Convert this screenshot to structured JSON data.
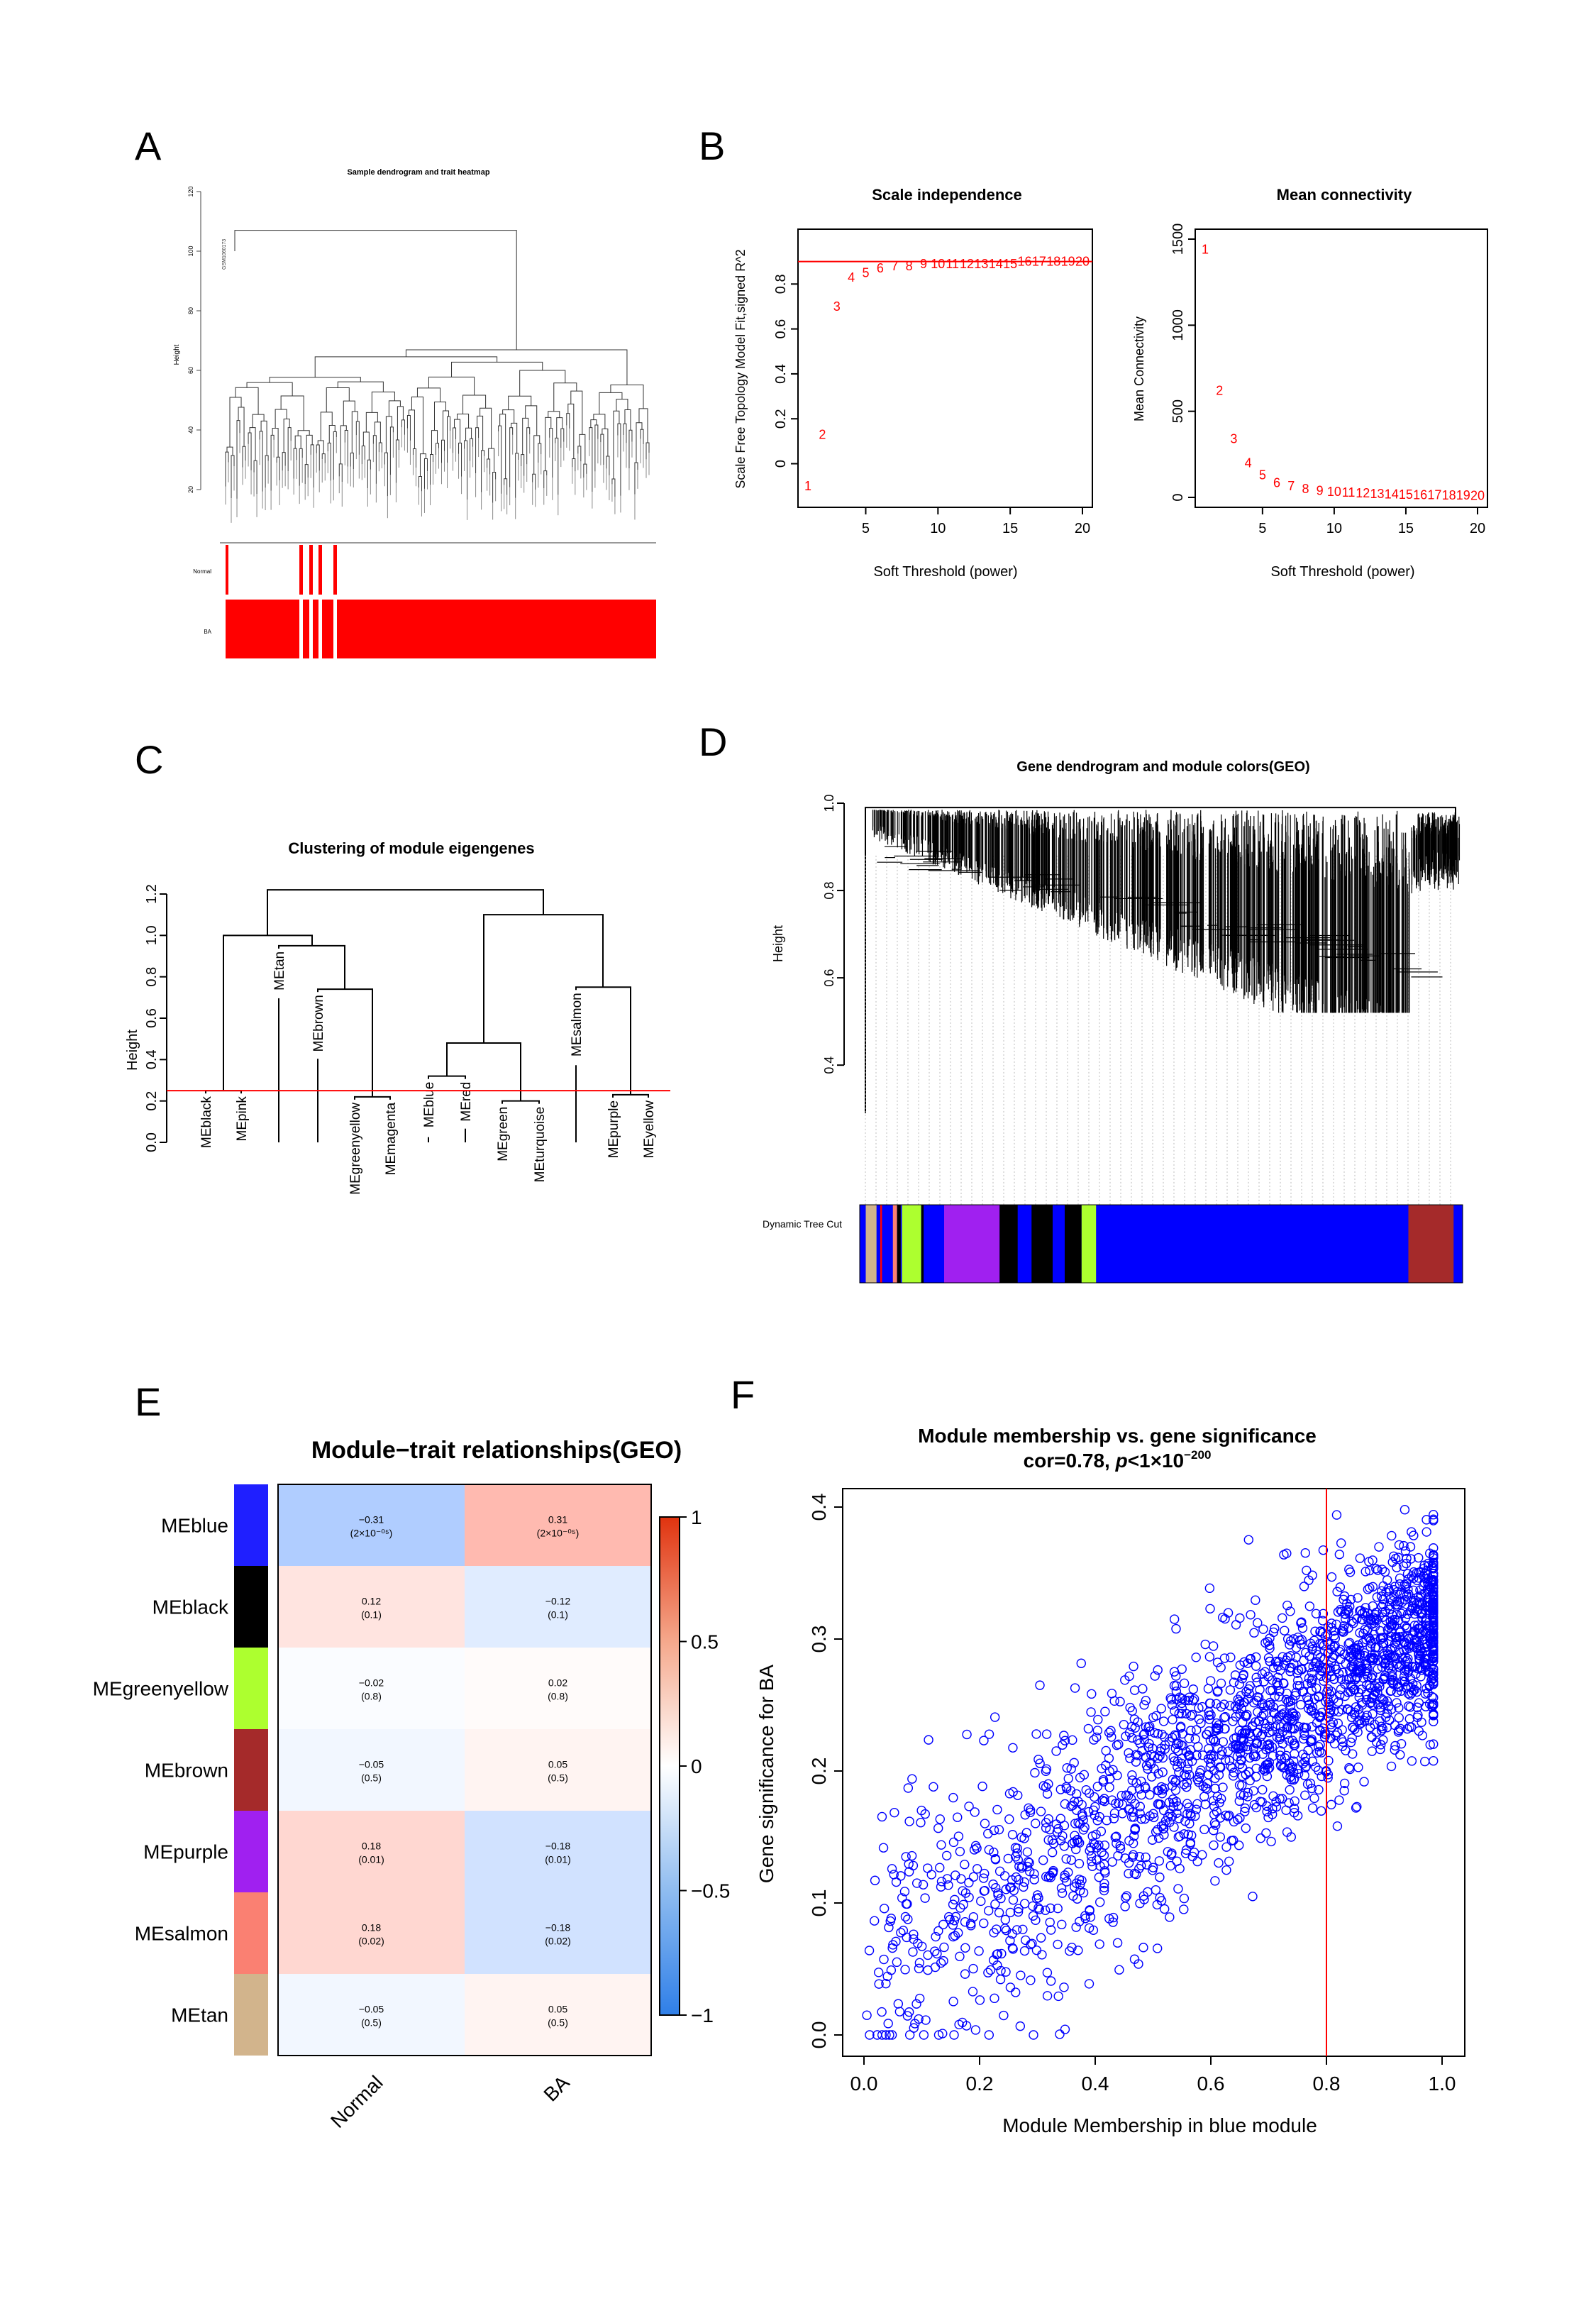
{
  "panels": {
    "a": "A",
    "b": "B",
    "c": "C",
    "d": "D",
    "e": "E",
    "f": "F"
  },
  "chart_data": [
    {
      "id": "A",
      "type": "dendrogram",
      "title": "Sample dendrogram and trait heatmap",
      "ylabel": "Height",
      "yticks": [
        20,
        40,
        60,
        80,
        100,
        120
      ],
      "outlier_sample": "GSM1060173",
      "trait_rows": [
        "Normal",
        "BA"
      ],
      "trait_colors": {
        "high": "#ff0000",
        "low": "#ffffff"
      }
    },
    {
      "id": "B1",
      "type": "scatter",
      "title": "Scale independence",
      "xlabel": "Soft Threshold (power)",
      "ylabel": "Scale Free Topology Model Fit,signed R^2",
      "xlim": [
        1,
        20
      ],
      "ylim": [
        -0.15,
        1.0
      ],
      "xticks": [
        5,
        10,
        15,
        20
      ],
      "yticks": [
        0.0,
        0.2,
        0.4,
        0.6,
        0.8
      ],
      "hline": 0.9,
      "x": [
        1,
        2,
        3,
        4,
        5,
        6,
        7,
        8,
        9,
        10,
        11,
        12,
        13,
        14,
        15,
        16,
        17,
        18,
        19,
        20
      ],
      "y": [
        -0.1,
        0.13,
        0.7,
        0.83,
        0.85,
        0.87,
        0.88,
        0.88,
        0.89,
        0.89,
        0.89,
        0.89,
        0.89,
        0.89,
        0.89,
        0.9,
        0.9,
        0.9,
        0.9,
        0.9
      ],
      "point_color": "#ff0000"
    },
    {
      "id": "B2",
      "type": "scatter",
      "title": "Mean connectivity",
      "xlabel": "Soft Threshold (power)",
      "ylabel": "Mean Connectivity",
      "xlim": [
        1,
        20
      ],
      "ylim": [
        0,
        1500
      ],
      "xticks": [
        5,
        10,
        15,
        20
      ],
      "yticks": [
        0,
        500,
        1000,
        1500
      ],
      "x": [
        1,
        2,
        3,
        4,
        5,
        6,
        7,
        8,
        9,
        10,
        11,
        12,
        13,
        14,
        15,
        16,
        17,
        18,
        19,
        20
      ],
      "y": [
        1440,
        620,
        340,
        200,
        130,
        85,
        65,
        50,
        40,
        33,
        28,
        24,
        21,
        19,
        17,
        15,
        14,
        13,
        12,
        11
      ],
      "point_color": "#ff0000"
    },
    {
      "id": "C",
      "type": "dendrogram",
      "title": "Clustering of module eigengenes",
      "ylabel": "Height",
      "ylim": [
        0,
        1.25
      ],
      "yticks": [
        0.0,
        0.2,
        0.4,
        0.6,
        0.8,
        1.0,
        1.2
      ],
      "cut_line": 0.25,
      "leaves": [
        "MEblack",
        "MEpink",
        "MEtan",
        "MEbrown",
        "MEgreenyellow",
        "MEmagenta",
        "MEblue",
        "MEred",
        "MEgreen",
        "MEturquoise",
        "MEsalmon",
        "MEpurple",
        "MEyellow"
      ],
      "merges": [
        {
          "a": "MEblack",
          "b": "MEpink",
          "h": 0.25
        },
        {
          "a": "MEgreenyellow",
          "b": "MEmagenta",
          "h": 0.22
        },
        {
          "a": "MEbrown",
          "b": "[greenyellow,magenta]",
          "h": 0.74
        },
        {
          "a": "MEtan",
          "b": "[brown…]",
          "h": 0.95
        },
        {
          "a": "[black,pink]",
          "b": "[tan…]",
          "h": 1.0
        },
        {
          "a": "MEblue",
          "b": "MEred",
          "h": 0.32
        },
        {
          "a": "MEgreen",
          "b": "MEturquoise",
          "h": 0.2
        },
        {
          "a": "[blue,red]",
          "b": "[green,turquoise]",
          "h": 0.48
        },
        {
          "a": "MEpurple",
          "b": "MEyellow",
          "h": 0.23
        },
        {
          "a": "MEsalmon",
          "b": "[purple,yellow]",
          "h": 0.75
        },
        {
          "a": "[blue…turquoise]",
          "b": "[salmon…]",
          "h": 1.1
        },
        {
          "a": "left",
          "b": "right",
          "h": 1.22
        }
      ]
    },
    {
      "id": "D",
      "type": "dendrogram",
      "title": "Gene dendrogram and module colors(GEO)",
      "ylabel": "Height",
      "yticks": [
        0.4,
        0.6,
        0.8,
        1.0
      ],
      "color_bar_label": "Dynamic Tree Cut",
      "color_segments": [
        {
          "color": "#0000ff",
          "from": 0.0,
          "to": 0.01
        },
        {
          "color": "#d2b48c",
          "from": 0.01,
          "to": 0.028
        },
        {
          "color": "#0000ff",
          "from": 0.028,
          "to": 0.07
        },
        {
          "color": "#ff0000",
          "from": 0.034,
          "to": 0.037
        },
        {
          "color": "#fa8072",
          "from": 0.055,
          "to": 0.062
        },
        {
          "color": "#000000",
          "from": 0.062,
          "to": 0.068
        },
        {
          "color": "#adff2f",
          "from": 0.07,
          "to": 0.102
        },
        {
          "color": "#000000",
          "from": 0.102,
          "to": 0.106
        },
        {
          "color": "#a020f0",
          "from": 0.14,
          "to": 0.232
        },
        {
          "color": "#000000",
          "from": 0.232,
          "to": 0.262
        },
        {
          "color": "#000000",
          "from": 0.285,
          "to": 0.32
        },
        {
          "color": "#000000",
          "from": 0.34,
          "to": 0.368
        },
        {
          "color": "#adff2f",
          "from": 0.368,
          "to": 0.392
        },
        {
          "color": "#a52a2a",
          "from": 0.91,
          "to": 0.985
        }
      ]
    },
    {
      "id": "E",
      "type": "heatmap",
      "title": "Module−trait relationships(GEO)",
      "columns": [
        "Normal",
        "BA"
      ],
      "rows": [
        "MEblue",
        "MEblack",
        "MEgreenyellow",
        "MEbrown",
        "MEpurple",
        "MEsalmon",
        "MEtan"
      ],
      "row_colors": [
        "#1f1fff",
        "#000000",
        "#adff2f",
        "#a52a2a",
        "#a020f0",
        "#fa8072",
        "#d2b48c"
      ],
      "values": [
        [
          -0.31,
          0.31
        ],
        [
          0.12,
          -0.12
        ],
        [
          -0.02,
          0.02
        ],
        [
          -0.05,
          0.05
        ],
        [
          0.18,
          -0.18
        ],
        [
          0.18,
          -0.18
        ],
        [
          -0.05,
          0.05
        ]
      ],
      "labels": [
        [
          "−0.31",
          "0.31"
        ],
        [
          "0.12",
          "−0.12"
        ],
        [
          "−0.02",
          "0.02"
        ],
        [
          "−0.05",
          "0.05"
        ],
        [
          "0.18",
          "−0.18"
        ],
        [
          "0.18",
          "−0.18"
        ],
        [
          "−0.05",
          "0.05"
        ]
      ],
      "pvalues": [
        [
          "(2×10⁻⁰⁵)",
          "(2×10⁻⁰⁵)"
        ],
        [
          "(0.1)",
          "(0.1)"
        ],
        [
          "(0.8)",
          "(0.8)"
        ],
        [
          "(0.5)",
          "(0.5)"
        ],
        [
          "(0.01)",
          "(0.01)"
        ],
        [
          "(0.02)",
          "(0.02)"
        ],
        [
          "(0.5)",
          "(0.5)"
        ]
      ],
      "colorbar_ticks": [
        "1",
        "0.5",
        "0",
        "−0.5",
        "−1"
      ],
      "colorbar_range": [
        -1,
        1
      ]
    },
    {
      "id": "F",
      "type": "scatter",
      "title": "Module membership vs. gene significance",
      "subtitle_prefix": "cor=0.78, ",
      "subtitle_p": "p",
      "subtitle_rest": "<1×10",
      "subtitle_exp": "−200",
      "xlabel": "Module Membership in blue module",
      "ylabel": "Gene significance for  BA",
      "xlim": [
        0.0,
        1.0
      ],
      "ylim": [
        0.0,
        0.4
      ],
      "xticks": [
        "0.0",
        "0.2",
        "0.4",
        "0.6",
        "0.8",
        "1.0"
      ],
      "yticks": [
        "0.0",
        "0.1",
        "0.2",
        "0.3",
        "0.4"
      ],
      "vline": 0.8,
      "point_color": "#0000ff",
      "n_points": 2100,
      "trend": {
        "slope": 0.26,
        "intercept": 0.055,
        "spread": 0.055
      }
    }
  ]
}
